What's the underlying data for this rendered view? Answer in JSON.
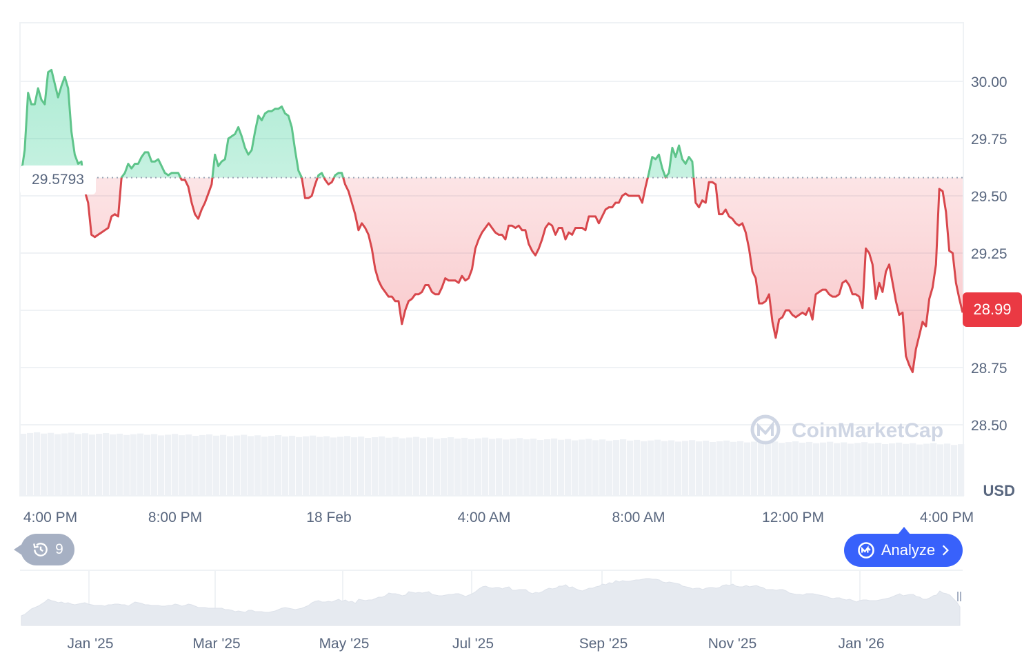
{
  "chart_data": {
    "type": "area",
    "unit_label": "USD",
    "current_price": "28.99",
    "reference_price": "29.5793",
    "reference_value": 29.5793,
    "ylim": [
      28.3,
      30.3
    ],
    "y_ticks": [
      "30.00",
      "29.75",
      "29.50",
      "29.25",
      "28.75",
      "28.50"
    ],
    "y_tick_values": [
      30.0,
      29.75,
      29.5,
      29.25,
      28.75,
      28.5
    ],
    "x_ticks": [
      "4:00 PM",
      "8:00 PM",
      "18 Feb",
      "4:00 AM",
      "8:00 AM",
      "12:00 PM",
      "4:00 PM"
    ],
    "navigator_ticks": [
      "Jan '25",
      "Mar '25",
      "May '25",
      "Jul '25",
      "Sep '25",
      "Nov '25",
      "Jan '26"
    ],
    "watermark": "CoinMarketCap",
    "colors": {
      "up": "#16c784",
      "down": "#ea3943",
      "line_up": "#5ec48a",
      "line_down": "#d8474c"
    },
    "series": [
      {
        "values": [
          29.6,
          29.7,
          29.95,
          29.9,
          29.9,
          29.97,
          29.92,
          29.9,
          30.04,
          30.05,
          29.99,
          29.93,
          29.98,
          30.02,
          29.97,
          29.78,
          29.68,
          29.64,
          29.65,
          29.52,
          29.47,
          29.33,
          29.32,
          29.33,
          29.34,
          29.35,
          29.36,
          29.41,
          29.42,
          29.41,
          29.58,
          29.6,
          29.64,
          29.62,
          29.64,
          29.64,
          29.67,
          29.69,
          29.69,
          29.65,
          29.65,
          29.66,
          29.63,
          29.6,
          29.59,
          29.6,
          29.6,
          29.6,
          29.57,
          29.57,
          29.54,
          29.47,
          29.42,
          29.4,
          29.44,
          29.47,
          29.51,
          29.55,
          29.68,
          29.63,
          29.65,
          29.66,
          29.75,
          29.76,
          29.77,
          29.8,
          29.76,
          29.71,
          29.68,
          29.7,
          29.78,
          29.85,
          29.83,
          29.86,
          29.87,
          29.87,
          29.88,
          29.88,
          29.89,
          29.86,
          29.85,
          29.8,
          29.7,
          29.61,
          29.58,
          29.49,
          29.49,
          29.5,
          29.55,
          29.59,
          29.6,
          29.57,
          29.55,
          29.56,
          29.59,
          29.6,
          29.6,
          29.55,
          29.52,
          29.47,
          29.42,
          29.35,
          29.38,
          29.36,
          29.33,
          29.27,
          29.18,
          29.13,
          29.1,
          29.08,
          29.06,
          29.06,
          29.04,
          29.04,
          28.94,
          29.0,
          29.04,
          29.05,
          29.07,
          29.07,
          29.08,
          29.11,
          29.11,
          29.08,
          29.07,
          29.07,
          29.1,
          29.14,
          29.13,
          29.13,
          29.13,
          29.12,
          29.15,
          29.13,
          29.14,
          29.18,
          29.27,
          29.31,
          29.34,
          29.36,
          29.38,
          29.36,
          29.34,
          29.33,
          29.33,
          29.31,
          29.37,
          29.37,
          29.36,
          29.37,
          29.35,
          29.35,
          29.29,
          29.26,
          29.24,
          29.27,
          29.31,
          29.36,
          29.38,
          29.37,
          29.33,
          29.36,
          29.36,
          29.31,
          29.34,
          29.33,
          29.36,
          29.36,
          29.36,
          29.35,
          29.41,
          29.41,
          29.41,
          29.38,
          29.41,
          29.44,
          29.45,
          29.45,
          29.47,
          29.47,
          29.5,
          29.51,
          29.5,
          29.5,
          29.5,
          29.5,
          29.47,
          29.54,
          29.6,
          29.67,
          29.66,
          29.68,
          29.62,
          29.58,
          29.6,
          29.71,
          29.67,
          29.72,
          29.66,
          29.64,
          29.67,
          29.65,
          29.47,
          29.45,
          29.48,
          29.47,
          29.56,
          29.56,
          29.55,
          29.42,
          29.42,
          29.44,
          29.41,
          29.4,
          29.38,
          29.37,
          29.38,
          29.34,
          29.27,
          29.17,
          29.14,
          29.03,
          29.03,
          29.04,
          29.07,
          28.95,
          28.88,
          28.96,
          28.97,
          29.0,
          29.0,
          28.98,
          28.97,
          28.98,
          28.99,
          28.98,
          29.01,
          28.96,
          29.07,
          29.08,
          29.09,
          29.09,
          29.07,
          29.06,
          29.06,
          29.07,
          29.12,
          29.13,
          29.11,
          29.07,
          29.07,
          29.06,
          29.01,
          29.27,
          29.25,
          29.2,
          29.05,
          29.12,
          29.08,
          29.17,
          29.2,
          29.12,
          29.04,
          28.98,
          28.99,
          28.8,
          28.76,
          28.73,
          28.83,
          28.89,
          28.95,
          28.93,
          29.05,
          29.1,
          29.2,
          29.53,
          29.52,
          29.43,
          29.26,
          29.25,
          29.12,
          29.05,
          28.99
        ]
      }
    ],
    "navigator_values": [
      14,
      16,
      20,
      24,
      26,
      28,
      31,
      34,
      38,
      36,
      35,
      33,
      34,
      32,
      33,
      31,
      30,
      31,
      32,
      33,
      31,
      30,
      29,
      29,
      29,
      28,
      30,
      30,
      31,
      31,
      30,
      30,
      28,
      31,
      34,
      33,
      32,
      30,
      30,
      29,
      29,
      29,
      28,
      28,
      29,
      29,
      31,
      30,
      28,
      29,
      31,
      30,
      28,
      26,
      26,
      26,
      25,
      25,
      25,
      25,
      25,
      23,
      23,
      22,
      20,
      21,
      20,
      19,
      22,
      22,
      20,
      20,
      20,
      19,
      19,
      20,
      21,
      23,
      25,
      26,
      25,
      24,
      23,
      24,
      25,
      27,
      29,
      33,
      35,
      36,
      34,
      34,
      35,
      34,
      36,
      38,
      35,
      37,
      34,
      35,
      32,
      38,
      37,
      36,
      37,
      37,
      39,
      41,
      41,
      43,
      47,
      46,
      46,
      45,
      43,
      44,
      49,
      48,
      47,
      48,
      47,
      48,
      49,
      45,
      44,
      43,
      43,
      44,
      45,
      45,
      46,
      46,
      44,
      42,
      44,
      46,
      49,
      53,
      56,
      57,
      55,
      54,
      55,
      55,
      53,
      55,
      56,
      51,
      51,
      52,
      52,
      52,
      48,
      46,
      48,
      47,
      49,
      52,
      54,
      53,
      54,
      57,
      57,
      59,
      55,
      56,
      53,
      51,
      50,
      52,
      54,
      54,
      56,
      57,
      60,
      59,
      62,
      61,
      65,
      63,
      65,
      64,
      64,
      65,
      66,
      66,
      67,
      68,
      68,
      67,
      67,
      66,
      63,
      62,
      63,
      62,
      61,
      60,
      57,
      56,
      55,
      53,
      54,
      54,
      52,
      54,
      55,
      55,
      54,
      55,
      58,
      59,
      58,
      60,
      57,
      56,
      56,
      58,
      56,
      57,
      58,
      56,
      55,
      52,
      52,
      52,
      51,
      52,
      52,
      50,
      47,
      46,
      45,
      45,
      44,
      46,
      46,
      46,
      45,
      44,
      43,
      42,
      40,
      39,
      40,
      40,
      38,
      37,
      38,
      36,
      34,
      36,
      37,
      37,
      36,
      36,
      36,
      37,
      38,
      39,
      40,
      42,
      44,
      46,
      43,
      44,
      45,
      45,
      42,
      41,
      38,
      38,
      40,
      43,
      44,
      50,
      47,
      46,
      44,
      39,
      34,
      27
    ]
  },
  "controls": {
    "history_count": "9",
    "analyze_label": "Analyze"
  }
}
